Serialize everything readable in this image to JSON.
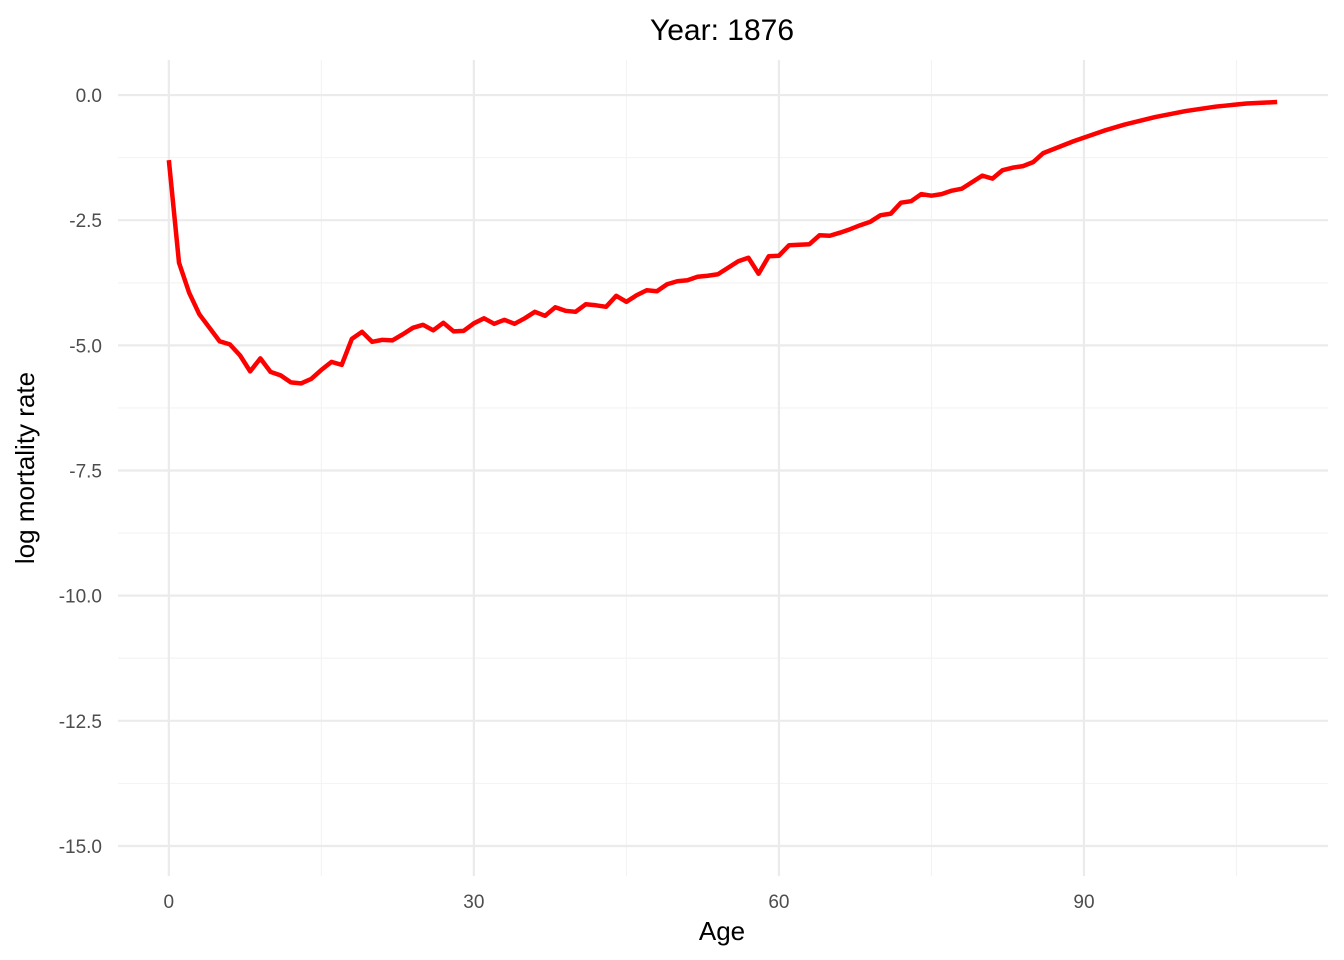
{
  "chart_data": {
    "type": "line",
    "title": "Year: 1876",
    "xlabel": "Age",
    "ylabel": "log mortality rate",
    "xlim": [
      -5,
      114
    ],
    "ylim": [
      -15.6,
      0.7
    ],
    "x_ticks": [
      0,
      30,
      60,
      90
    ],
    "x_tick_labels": [
      "0",
      "30",
      "60",
      "90"
    ],
    "y_ticks": [
      0,
      -2.5,
      -5,
      -7.5,
      -10,
      -12.5,
      -15
    ],
    "y_tick_labels": [
      "0.0",
      "-2.5",
      "-5.0",
      "-7.5",
      "-10.0",
      "-12.5",
      "-15.0"
    ],
    "grid": true,
    "colors": {
      "line": "#ff0000",
      "grid_major": "#ebebeb",
      "grid_minor": "#f3f3f3",
      "background": "#ffffff"
    },
    "series": [
      {
        "x": [
          0,
          1,
          2,
          3,
          4,
          5,
          6,
          7,
          8,
          9,
          10,
          11,
          12,
          13,
          14,
          15,
          16,
          17,
          18,
          19,
          20,
          21,
          22,
          23,
          24,
          25,
          26,
          27,
          28,
          29,
          30,
          31,
          32,
          33,
          34,
          35,
          36,
          37,
          38,
          39,
          40,
          41,
          42,
          43,
          44,
          45,
          46,
          47,
          48,
          49,
          50,
          51,
          52,
          53,
          54,
          55,
          56,
          57,
          58,
          59,
          60,
          61,
          62,
          63,
          64,
          65,
          66,
          67,
          68,
          69,
          70,
          71,
          72,
          73,
          74,
          75,
          76,
          77,
          78,
          79,
          80,
          81,
          82,
          83,
          84,
          85,
          86,
          87,
          88,
          89,
          90,
          91,
          92,
          93,
          94,
          95,
          96,
          97,
          98,
          99,
          100,
          101,
          102,
          103,
          104,
          105,
          106,
          107,
          108,
          109
        ],
        "values": [
          -1.3,
          -3.35,
          -3.95,
          -4.38,
          -4.65,
          -4.92,
          -4.98,
          -5.2,
          -5.52,
          -5.26,
          -5.53,
          -5.6,
          -5.74,
          -5.76,
          -5.67,
          -5.49,
          -5.33,
          -5.39,
          -4.87,
          -4.73,
          -4.93,
          -4.89,
          -4.9,
          -4.78,
          -4.65,
          -4.59,
          -4.7,
          -4.55,
          -4.72,
          -4.71,
          -4.56,
          -4.46,
          -4.57,
          -4.49,
          -4.57,
          -4.46,
          -4.33,
          -4.41,
          -4.24,
          -4.31,
          -4.33,
          -4.18,
          -4.2,
          -4.23,
          -4.01,
          -4.13,
          -4.0,
          -3.9,
          -3.92,
          -3.78,
          -3.72,
          -3.7,
          -3.63,
          -3.61,
          -3.58,
          -3.45,
          -3.32,
          -3.25,
          -3.57,
          -3.22,
          -3.21,
          -3.0,
          -2.99,
          -2.98,
          -2.8,
          -2.81,
          -2.75,
          -2.68,
          -2.6,
          -2.53,
          -2.4,
          -2.37,
          -2.15,
          -2.12,
          -1.98,
          -2.01,
          -1.98,
          -1.91,
          -1.87,
          -1.74,
          -1.61,
          -1.67,
          -1.5,
          -1.45,
          -1.42,
          -1.34,
          -1.16,
          -1.08,
          -1.0,
          -0.92,
          -0.85,
          -0.78,
          -0.71,
          -0.65,
          -0.59,
          -0.54,
          -0.49,
          -0.44,
          -0.4,
          -0.36,
          -0.32,
          -0.29,
          -0.26,
          -0.23,
          -0.21,
          -0.19,
          -0.17,
          -0.16,
          -0.15,
          -0.14
        ]
      }
    ]
  }
}
